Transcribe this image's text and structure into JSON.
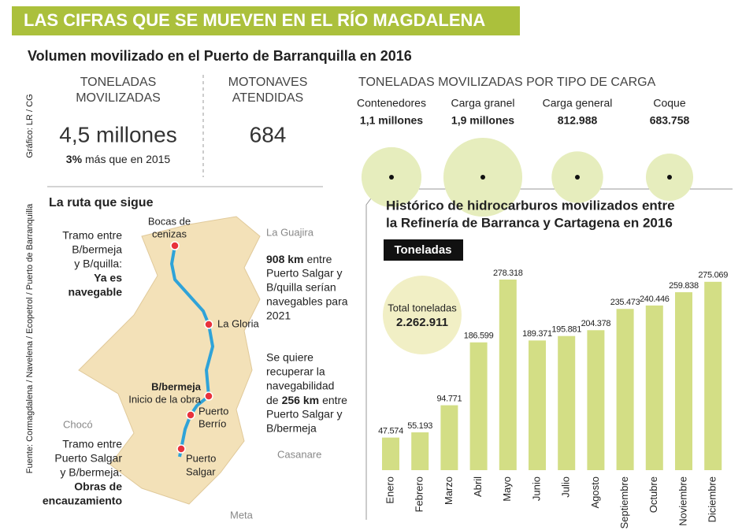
{
  "header": {
    "title": "LAS CIFRAS QUE SE MUEVEN EN EL RÍO MAGDALENA",
    "subtitle": "Volumen movilizado en el Puerto de Barranquilla en 2016"
  },
  "credits": {
    "graphic": "Gráfico: LR / CG",
    "source": "Fuente: Cormagdalena / Navelena / Ecopetrol / Puerto de Barranquilla"
  },
  "stats": [
    {
      "label": [
        "TONELADAS",
        "MOVILIZADAS"
      ],
      "value": "4,5 millones",
      "note_bold": "3%",
      "note": "más que en 2015"
    },
    {
      "label": [
        "MOTONAVES",
        "ATENDIDAS"
      ],
      "value": "684"
    }
  ],
  "cargo": {
    "title": "TONELADAS MOVILIZADAS POR TIPO DE CARGA",
    "color": "#e6edbd",
    "items": [
      {
        "name": "Contenedores",
        "label": "1,1 millones",
        "value": 1100000
      },
      {
        "name": "Carga granel",
        "label": "1,9 millones",
        "value": 1900000
      },
      {
        "name": "Carga general",
        "label": "812.988",
        "value": 812988
      },
      {
        "name": "Coque",
        "label": "683.758",
        "value": 683758
      }
    ]
  },
  "route": {
    "title": "La ruta que sigue",
    "places": [
      {
        "lines": [
          "Bocas de",
          "cenizas"
        ]
      },
      {
        "lines": [
          "La Gloria"
        ]
      },
      {
        "bold": "B/bermeja",
        "lines": [
          "Inicio de la obra"
        ]
      },
      {
        "lines": [
          "Puerto",
          "Berrío"
        ]
      },
      {
        "lines": [
          "Puerto",
          "Salgar"
        ]
      }
    ],
    "regions": [
      "La Guajira",
      "Chocó",
      "Casanare",
      "Meta"
    ],
    "note_north": {
      "lines": [
        "Tramo entre",
        "B/bermeja",
        "y B/quilla:"
      ],
      "bold_lines": [
        "Ya es",
        "navegable"
      ]
    },
    "note_south": {
      "lines": [
        "Tramo entre",
        "Puerto Salgar",
        "y B/bermeja:"
      ],
      "bold_lines": [
        "Obras de",
        "encauzamiento"
      ]
    },
    "note_908": {
      "bold": "908 km",
      "rest": "entre",
      "lines": [
        "Puerto Salgar y",
        "B/quilla serían",
        "navegables para",
        "2021"
      ]
    },
    "note_256": {
      "lines_before": [
        "Se quiere",
        "recuperar la",
        "navegabilidad"
      ],
      "pre": "de",
      "bold": "256 km",
      "post": "entre",
      "lines_after": [
        "Puerto Salgar y",
        "B/bermeja"
      ]
    }
  },
  "chart_data": {
    "type": "bar",
    "title": [
      "Histórico de hidrocarburos movilizados entre",
      "la Refinería de Barranca y Cartagena en 2016"
    ],
    "unit_label": "Toneladas",
    "total": {
      "label": "Total toneladas",
      "value": 2262911,
      "value_label": "2.262.911"
    },
    "categories": [
      "Enero",
      "Febrero",
      "Marzo",
      "Abril",
      "Mayo",
      "Junio",
      "Julio",
      "Agosto",
      "Septiembre",
      "Octubre",
      "Noviembre",
      "Diciembre"
    ],
    "values": [
      47574,
      55193,
      94771,
      186599,
      278318,
      189371,
      195881,
      204378,
      235473,
      240446,
      259838,
      275069
    ],
    "value_labels": [
      "47.574",
      "55.193",
      "94.771",
      "186.599",
      "278.318",
      "189.371",
      "195.881",
      "204.378",
      "235.473",
      "240.446",
      "259.838",
      "275.069"
    ],
    "color": "#d3de85"
  }
}
